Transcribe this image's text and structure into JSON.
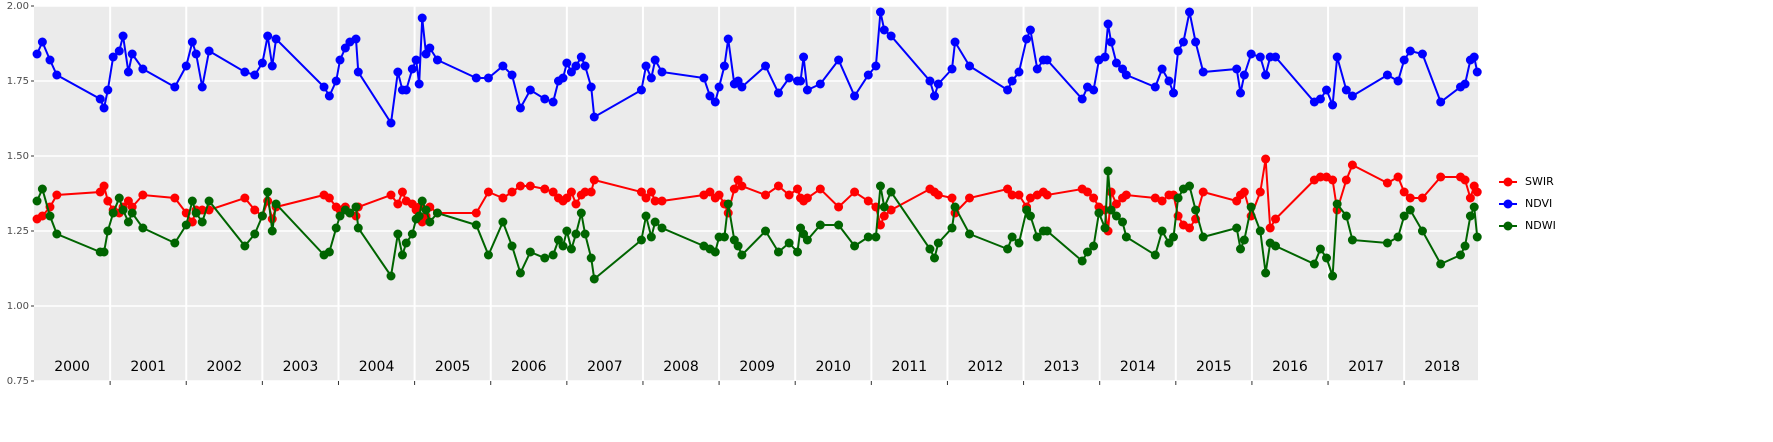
{
  "chart_data": {
    "type": "line",
    "x": [
      2000.04,
      2000.11,
      2000.21,
      2000.3,
      2000.87,
      2000.92,
      2000.97,
      2001.04,
      2001.12,
      2001.17,
      2001.24,
      2001.29,
      2001.43,
      2001.85,
      2002.0,
      2002.08,
      2002.13,
      2002.21,
      2002.3,
      2002.77,
      2002.9,
      2003.0,
      2003.07,
      2003.13,
      2003.18,
      2003.81,
      2003.88,
      2003.97,
      2004.02,
      2004.09,
      2004.15,
      2004.23,
      2004.26,
      2004.69,
      2004.78,
      2004.84,
      2004.89,
      2004.97,
      2005.02,
      2005.06,
      2005.1,
      2005.15,
      2005.2,
      2005.3,
      2005.81,
      2005.97,
      2006.16,
      2006.28,
      2006.39,
      2006.52,
      2006.71,
      2006.82,
      2006.89,
      2006.95,
      2007.0,
      2007.06,
      2007.12,
      2007.19,
      2007.24,
      2007.32,
      2007.36,
      2007.98,
      2008.04,
      2008.11,
      2008.16,
      2008.25,
      2008.8,
      2008.88,
      2008.95,
      2009.0,
      2009.07,
      2009.12,
      2009.2,
      2009.25,
      2009.3,
      2009.61,
      2009.78,
      2009.92,
      2010.03,
      2010.07,
      2010.11,
      2010.16,
      2010.33,
      2010.57,
      2010.78,
      2010.96,
      2011.06,
      2011.12,
      2011.17,
      2011.26,
      2011.77,
      2011.83,
      2011.88,
      2012.06,
      2012.1,
      2012.29,
      2012.79,
      2012.85,
      2012.94,
      2013.04,
      2013.09,
      2013.18,
      2013.26,
      2013.31,
      2013.77,
      2013.84,
      2013.92,
      2013.99,
      2014.07,
      2014.11,
      2014.15,
      2014.22,
      2014.3,
      2014.35,
      2014.73,
      2014.82,
      2014.91,
      2014.97,
      2015.03,
      2015.1,
      2015.18,
      2015.26,
      2015.36,
      2015.8,
      2015.85,
      2015.9,
      2015.99,
      2016.11,
      2016.18,
      2016.24,
      2016.31,
      2016.82,
      2016.9,
      2016.98,
      2017.06,
      2017.12,
      2017.24,
      2017.32,
      2017.78,
      2017.92,
      2018.0,
      2018.08,
      2018.24,
      2018.48,
      2018.74,
      2018.8,
      2018.87,
      2018.92,
      2018.96
    ],
    "series": [
      {
        "name": "SWIR",
        "color": "#ff0000",
        "values": [
          1.29,
          1.3,
          1.33,
          1.37,
          1.38,
          1.4,
          1.35,
          1.32,
          1.31,
          1.33,
          1.35,
          1.33,
          1.37,
          1.36,
          1.31,
          1.28,
          1.32,
          1.32,
          1.32,
          1.36,
          1.32,
          1.3,
          1.35,
          1.29,
          1.33,
          1.37,
          1.36,
          1.33,
          1.32,
          1.33,
          1.31,
          1.3,
          1.33,
          1.37,
          1.34,
          1.38,
          1.35,
          1.34,
          1.32,
          1.33,
          1.28,
          1.3,
          1.33,
          1.31,
          1.31,
          1.38,
          1.36,
          1.38,
          1.4,
          1.4,
          1.39,
          1.38,
          1.36,
          1.35,
          1.36,
          1.38,
          1.34,
          1.37,
          1.38,
          1.38,
          1.42,
          1.38,
          1.36,
          1.38,
          1.35,
          1.35,
          1.37,
          1.38,
          1.36,
          1.37,
          1.34,
          1.31,
          1.39,
          1.42,
          1.4,
          1.37,
          1.4,
          1.37,
          1.39,
          1.36,
          1.35,
          1.36,
          1.39,
          1.33,
          1.38,
          1.35,
          1.33,
          1.27,
          1.3,
          1.32,
          1.39,
          1.38,
          1.37,
          1.36,
          1.31,
          1.36,
          1.39,
          1.37,
          1.37,
          1.33,
          1.36,
          1.37,
          1.38,
          1.37,
          1.39,
          1.38,
          1.36,
          1.33,
          1.32,
          1.25,
          1.38,
          1.34,
          1.36,
          1.37,
          1.36,
          1.35,
          1.37,
          1.37,
          1.3,
          1.27,
          1.26,
          1.29,
          1.38,
          1.35,
          1.37,
          1.38,
          1.3,
          1.38,
          1.49,
          1.26,
          1.29,
          1.42,
          1.43,
          1.43,
          1.42,
          1.32,
          1.42,
          1.47,
          1.41,
          1.43,
          1.38,
          1.36,
          1.36,
          1.43,
          1.43,
          1.42,
          1.36,
          1.4,
          1.38
        ]
      },
      {
        "name": "NDVI",
        "color": "#0000ff",
        "values": [
          1.84,
          1.88,
          1.82,
          1.77,
          1.69,
          1.66,
          1.72,
          1.83,
          1.85,
          1.9,
          1.78,
          1.84,
          1.79,
          1.73,
          1.8,
          1.88,
          1.84,
          1.73,
          1.85,
          1.78,
          1.77,
          1.81,
          1.9,
          1.8,
          1.89,
          1.73,
          1.7,
          1.75,
          1.82,
          1.86,
          1.88,
          1.89,
          1.78,
          1.61,
          1.78,
          1.72,
          1.72,
          1.79,
          1.82,
          1.74,
          1.96,
          1.84,
          1.86,
          1.82,
          1.76,
          1.76,
          1.8,
          1.77,
          1.66,
          1.72,
          1.69,
          1.68,
          1.75,
          1.76,
          1.81,
          1.78,
          1.8,
          1.83,
          1.8,
          1.73,
          1.63,
          1.72,
          1.8,
          1.76,
          1.82,
          1.78,
          1.76,
          1.7,
          1.68,
          1.73,
          1.8,
          1.89,
          1.74,
          1.75,
          1.73,
          1.8,
          1.71,
          1.76,
          1.75,
          1.75,
          1.83,
          1.72,
          1.74,
          1.82,
          1.7,
          1.77,
          1.8,
          1.98,
          1.92,
          1.9,
          1.75,
          1.7,
          1.74,
          1.79,
          1.88,
          1.8,
          1.72,
          1.75,
          1.78,
          1.89,
          1.92,
          1.79,
          1.82,
          1.82,
          1.69,
          1.73,
          1.72,
          1.82,
          1.83,
          1.94,
          1.88,
          1.81,
          1.79,
          1.77,
          1.73,
          1.79,
          1.75,
          1.71,
          1.85,
          1.88,
          1.98,
          1.88,
          1.78,
          1.79,
          1.71,
          1.77,
          1.84,
          1.83,
          1.77,
          1.83,
          1.83,
          1.68,
          1.69,
          1.72,
          1.67,
          1.83,
          1.72,
          1.7,
          1.77,
          1.75,
          1.82,
          1.85,
          1.84,
          1.68,
          1.73,
          1.74,
          1.82,
          1.83,
          1.78
        ]
      },
      {
        "name": "NDWI",
        "color": "#006400",
        "values": [
          1.35,
          1.39,
          1.3,
          1.24,
          1.18,
          1.18,
          1.25,
          1.31,
          1.36,
          1.32,
          1.28,
          1.31,
          1.26,
          1.21,
          1.27,
          1.35,
          1.31,
          1.28,
          1.35,
          1.2,
          1.24,
          1.3,
          1.38,
          1.25,
          1.34,
          1.17,
          1.18,
          1.26,
          1.3,
          1.32,
          1.31,
          1.33,
          1.26,
          1.1,
          1.24,
          1.17,
          1.21,
          1.24,
          1.29,
          1.3,
          1.35,
          1.32,
          1.28,
          1.31,
          1.27,
          1.17,
          1.28,
          1.2,
          1.11,
          1.18,
          1.16,
          1.17,
          1.22,
          1.2,
          1.25,
          1.19,
          1.24,
          1.31,
          1.24,
          1.16,
          1.09,
          1.22,
          1.3,
          1.23,
          1.28,
          1.26,
          1.2,
          1.19,
          1.18,
          1.23,
          1.23,
          1.34,
          1.22,
          1.2,
          1.17,
          1.25,
          1.18,
          1.21,
          1.18,
          1.26,
          1.24,
          1.22,
          1.27,
          1.27,
          1.2,
          1.23,
          1.23,
          1.4,
          1.33,
          1.38,
          1.19,
          1.16,
          1.21,
          1.26,
          1.33,
          1.24,
          1.19,
          1.23,
          1.21,
          1.32,
          1.3,
          1.23,
          1.25,
          1.25,
          1.15,
          1.18,
          1.2,
          1.31,
          1.26,
          1.45,
          1.32,
          1.3,
          1.28,
          1.23,
          1.17,
          1.25,
          1.21,
          1.23,
          1.36,
          1.39,
          1.4,
          1.32,
          1.23,
          1.26,
          1.19,
          1.22,
          1.33,
          1.25,
          1.11,
          1.21,
          1.2,
          1.14,
          1.19,
          1.16,
          1.1,
          1.34,
          1.3,
          1.22,
          1.21,
          1.23,
          1.3,
          1.32,
          1.25,
          1.14,
          1.17,
          1.2,
          1.3,
          1.33,
          1.23
        ]
      }
    ],
    "xlim": [
      2000,
      2018.97
    ],
    "ylim": [
      0.75,
      2.0
    ],
    "yticks": [
      {
        "value": 0.75,
        "label": "0.75"
      },
      {
        "value": 1.0,
        "label": "1.00"
      },
      {
        "value": 1.25,
        "label": "1.25"
      },
      {
        "value": 1.5,
        "label": "1.50"
      },
      {
        "value": 1.75,
        "label": "1.75"
      },
      {
        "value": 2.0,
        "label": "2.00"
      }
    ],
    "xticks": [
      {
        "value": 2000.5,
        "label": "2000"
      },
      {
        "value": 2001.5,
        "label": "2001"
      },
      {
        "value": 2002.5,
        "label": "2002"
      },
      {
        "value": 2003.5,
        "label": "2003"
      },
      {
        "value": 2004.5,
        "label": "2004"
      },
      {
        "value": 2005.5,
        "label": "2005"
      },
      {
        "value": 2006.5,
        "label": "2006"
      },
      {
        "value": 2007.5,
        "label": "2007"
      },
      {
        "value": 2008.5,
        "label": "2008"
      },
      {
        "value": 2009.5,
        "label": "2009"
      },
      {
        "value": 2010.5,
        "label": "2010"
      },
      {
        "value": 2011.5,
        "label": "2011"
      },
      {
        "value": 2012.5,
        "label": "2012"
      },
      {
        "value": 2013.5,
        "label": "2013"
      },
      {
        "value": 2014.5,
        "label": "2014"
      },
      {
        "value": 2015.5,
        "label": "2015"
      },
      {
        "value": 2016.5,
        "label": "2016"
      },
      {
        "value": 2017.5,
        "label": "2017"
      },
      {
        "value": 2018.5,
        "label": "2018"
      }
    ],
    "year_boundaries": [
      2001,
      2002,
      2003,
      2004,
      2005,
      2006,
      2007,
      2008,
      2009,
      2010,
      2011,
      2012,
      2013,
      2014,
      2015,
      2016,
      2017,
      2018
    ],
    "grid": true,
    "legend": "right"
  }
}
